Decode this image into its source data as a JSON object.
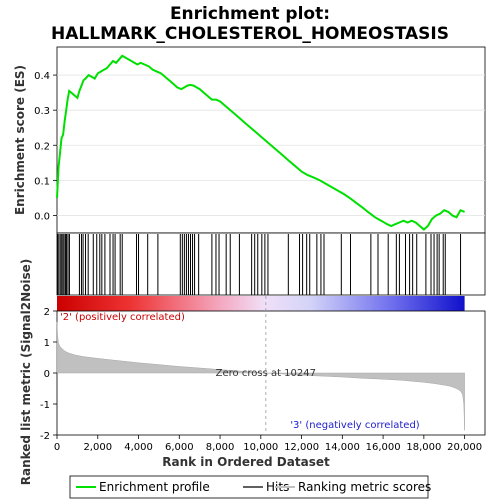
{
  "chart_data": {
    "type": "line",
    "title_line1": "Enrichment plot:",
    "title_line2": "HALLMARK_CHOLESTEROL_HOMEOSTASIS",
    "top_panel": {
      "ylabel": "Enrichment score (ES)",
      "ylim": [
        -0.05,
        0.48
      ],
      "yticks": [
        "0.0",
        "0.1",
        "0.2",
        "0.3",
        "0.4"
      ],
      "ytick_values": [
        0.0,
        0.1,
        0.2,
        0.3,
        0.4
      ],
      "grid": true,
      "series_color": "#00e000",
      "enrichment_profile": {
        "x": [
          0,
          80,
          150,
          220,
          300,
          380,
          450,
          520,
          600,
          700,
          800,
          900,
          1000,
          1100,
          1200,
          1300,
          1400,
          1550,
          1700,
          1850,
          2000,
          2150,
          2300,
          2450,
          2600,
          2750,
          2900,
          3050,
          3200,
          3350,
          3500,
          3650,
          3800,
          3950,
          4100,
          4300,
          4500,
          4700,
          4900,
          5100,
          5300,
          5500,
          5700,
          5900,
          6100,
          6250,
          6400,
          6550,
          6700,
          6850,
          7000,
          7200,
          7400,
          7600,
          7800,
          8000,
          8200,
          8400,
          8600,
          8800,
          9000,
          9300,
          9600,
          9900,
          10200,
          10500,
          10800,
          11100,
          11400,
          11700,
          12000,
          12300,
          12600,
          12900,
          13200,
          13500,
          13800,
          14100,
          14400,
          14700,
          15000,
          15300,
          15600,
          15900,
          16200,
          16400,
          16600,
          16800,
          17000,
          17200,
          17400,
          17600,
          17800,
          18000,
          18200,
          18400,
          18600,
          18800,
          19000,
          19200,
          19400,
          19600,
          19800,
          20000
        ],
        "y": [
          0.05,
          0.14,
          0.18,
          0.22,
          0.23,
          0.27,
          0.3,
          0.33,
          0.355,
          0.35,
          0.345,
          0.34,
          0.335,
          0.355,
          0.37,
          0.385,
          0.39,
          0.4,
          0.395,
          0.39,
          0.405,
          0.41,
          0.415,
          0.42,
          0.43,
          0.44,
          0.435,
          0.445,
          0.455,
          0.45,
          0.445,
          0.44,
          0.435,
          0.43,
          0.435,
          0.43,
          0.425,
          0.415,
          0.41,
          0.405,
          0.395,
          0.385,
          0.375,
          0.365,
          0.36,
          0.365,
          0.37,
          0.372,
          0.37,
          0.365,
          0.36,
          0.35,
          0.34,
          0.33,
          0.33,
          0.325,
          0.315,
          0.305,
          0.295,
          0.285,
          0.275,
          0.26,
          0.245,
          0.23,
          0.215,
          0.2,
          0.185,
          0.17,
          0.155,
          0.14,
          0.125,
          0.115,
          0.108,
          0.1,
          0.09,
          0.08,
          0.07,
          0.06,
          0.048,
          0.035,
          0.022,
          0.008,
          -0.005,
          -0.015,
          -0.025,
          -0.03,
          -0.025,
          -0.02,
          -0.015,
          -0.02,
          -0.015,
          -0.02,
          -0.03,
          -0.04,
          -0.03,
          -0.01,
          0.0,
          0.005,
          0.015,
          0.01,
          0.0,
          -0.005,
          0.015,
          0.01
        ]
      }
    },
    "hits": [
      30,
      90,
      160,
      230,
      290,
      350,
      420,
      470,
      540,
      610,
      1100,
      1200,
      1280,
      1400,
      1530,
      1780,
      1950,
      2100,
      2200,
      2350,
      2600,
      2750,
      2850,
      3100,
      3200,
      3900,
      4000,
      4450,
      4950,
      6050,
      6150,
      6250,
      6350,
      6450,
      6550,
      6650,
      6750,
      6950,
      7600,
      7800,
      7950,
      8300,
      8500,
      8950,
      9550,
      9700,
      9850,
      10050,
      10200,
      10350,
      11350,
      11900,
      12050,
      12250,
      12400,
      12750,
      12950,
      13100,
      13950,
      14400,
      15400,
      15750,
      16250,
      16650,
      16800,
      17100,
      17300,
      17450,
      17650,
      18100,
      18350,
      18500,
      18650,
      18750,
      18950,
      19050,
      19800
    ],
    "x_axis": {
      "xlabel": "Rank in Ordered Dataset",
      "xlim": [
        0,
        21000
      ],
      "xticks": [
        "0",
        "2,000",
        "4,000",
        "6,000",
        "8,000",
        "10,000",
        "12,000",
        "14,000",
        "16,000",
        "18,000",
        "20,000"
      ],
      "xtick_values": [
        0,
        2000,
        4000,
        6000,
        8000,
        10000,
        12000,
        14000,
        16000,
        18000,
        20000
      ],
      "n_genes": 20000
    },
    "bottom_panel": {
      "ylabel": "Ranked list metric (Signal2Noise)",
      "ylim": [
        -2,
        2
      ],
      "yticks": [
        "2",
        "1",
        "0",
        "-1",
        "-2"
      ],
      "ytick_values": [
        2,
        1,
        0,
        -1,
        -2
      ],
      "zero_cross_label": "Zero cross at 10247",
      "zero_cross": 10247,
      "positive_label": "'2' (positively correlated)",
      "negative_label": "'3' (negatively correlated)",
      "positive_color": "#cc0000",
      "negative_color": "#0000cc",
      "metric_profile": {
        "x": [
          0,
          30,
          80,
          150,
          250,
          400,
          600,
          900,
          1300,
          2000,
          3000,
          4000,
          5000,
          6000,
          7000,
          8000,
          9000,
          10247,
          11000,
          12000,
          13000,
          14000,
          15000,
          16000,
          17000,
          17500,
          18000,
          18500,
          19000,
          19300,
          19600,
          19800,
          19900,
          19960,
          20000
        ],
        "y": [
          1.65,
          1.2,
          0.95,
          0.85,
          0.78,
          0.7,
          0.64,
          0.58,
          0.53,
          0.47,
          0.4,
          0.33,
          0.27,
          0.21,
          0.16,
          0.11,
          0.06,
          0.0,
          -0.03,
          -0.07,
          -0.1,
          -0.13,
          -0.17,
          -0.2,
          -0.24,
          -0.27,
          -0.3,
          -0.34,
          -0.39,
          -0.43,
          -0.5,
          -0.58,
          -0.7,
          -1.0,
          -1.85
        ]
      }
    },
    "legend": {
      "items": [
        "Enrichment profile",
        "Hits",
        "Ranking metric scores"
      ],
      "colors": [
        "#00e000",
        "#000000",
        "#c0c0c0"
      ]
    }
  }
}
